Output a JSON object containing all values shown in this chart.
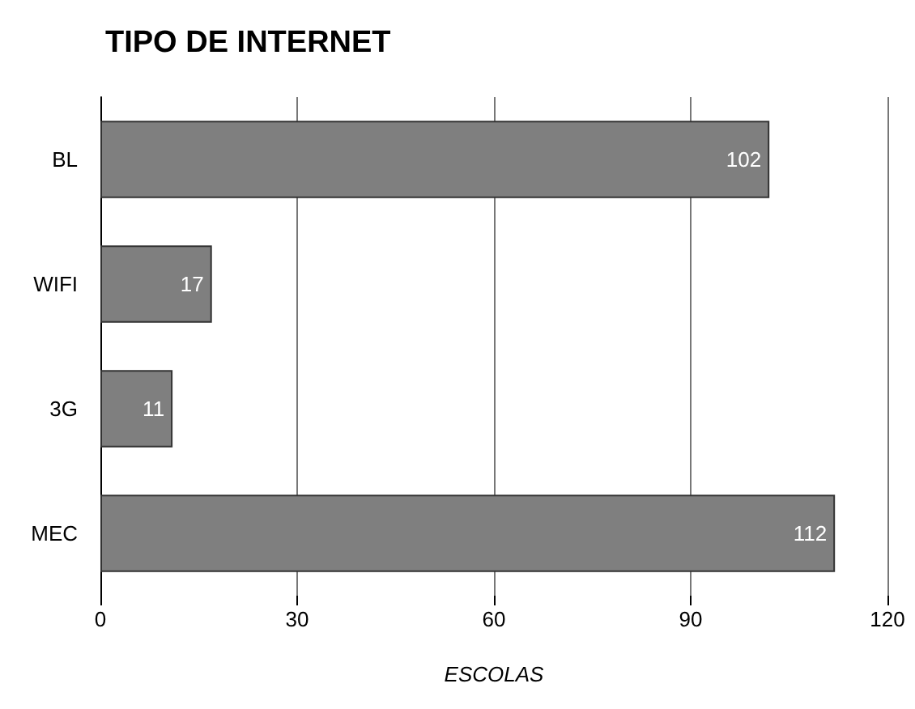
{
  "chart_data": {
    "type": "bar",
    "orientation": "horizontal",
    "title": "TIPO DE INTERNET",
    "xlabel": "ESCOLAS",
    "categories": [
      "BL",
      "WIFI",
      "3G",
      "MEC"
    ],
    "values": [
      102,
      17,
      11,
      112
    ],
    "color": "#7f7f7f",
    "xlim": [
      0,
      120
    ],
    "xticks": [
      0,
      30,
      60,
      90,
      120
    ],
    "grid": "x",
    "data_labels": true
  }
}
